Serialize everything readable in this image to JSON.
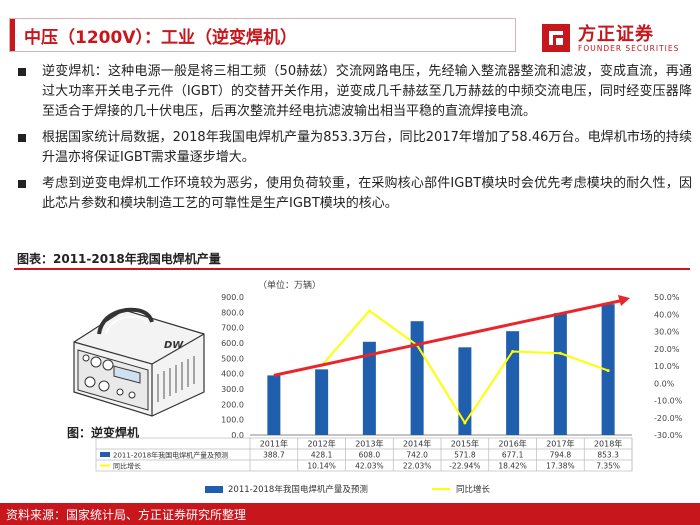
{
  "header": {
    "title": "中压（1200V）：工业（逆变焊机）"
  },
  "brand": {
    "name_cn": "方正证券",
    "name_en": "FOUNDER SECURITIES",
    "color": "#c8161d"
  },
  "bullets": [
    "逆变焊机：这种电源一般是将三相工频（50赫兹）交流网路电压，先经输入整流器整流和滤波，变成直流，再通过大功率开关电子元件（IGBT）的交替开关作用，逆变成几千赫兹至几万赫兹的中频交流电压，同时经变压器降至适合于焊接的几十伏电压，后再次整流并经电抗滤波输出相当平稳的直流焊接电流。",
    "根据国家统计局数据，2018年我国电焊机产量为853.3万台，同比2017年增加了58.46万台。电焊机市场的持续升温亦将保证IGBT需求量逐步增大。",
    "考虑到逆变电焊机工作环境较为恶劣，使用负荷较重，在采购核心部件IGBT模块时会优先考虑模块的耐久性，因此芯片参数和模块制造工艺的可靠性是生产IGBT模块的核心。"
  ],
  "figure": {
    "title": "图表：2011-2018年我国电焊机产量",
    "image_caption": "图：逆变焊机",
    "welder_label": "DW"
  },
  "chart_data": {
    "type": "bar",
    "unit_note": "（单位：万辆）",
    "categories": [
      "2011年",
      "2012年",
      "2013年",
      "2014年",
      "2015年",
      "2016年",
      "2017年",
      "2018年"
    ],
    "series": [
      {
        "name": "2011-2018年我国电焊机产量及预测",
        "type": "bar",
        "values": [
          388.7,
          428.1,
          608.0,
          742.0,
          571.8,
          677.1,
          794.8,
          853.3
        ],
        "labels": [
          "388.7",
          "428.1",
          "608.0",
          "742.0",
          "571.8",
          "677.1",
          "794.8",
          "853.3"
        ],
        "color": "#1f5fad"
      },
      {
        "name": "同比增长",
        "type": "line",
        "values": [
          null,
          10.14,
          42.03,
          22.03,
          -22.94,
          18.42,
          17.38,
          7.35
        ],
        "labels": [
          "",
          "10.14%",
          "42.03%",
          "22.03%",
          "-22.94%",
          "18.42%",
          "17.38%",
          "7.35%"
        ],
        "color": "#ffff00"
      }
    ],
    "y_left": {
      "ylim": [
        0,
        900
      ],
      "ticks": [
        "0.0",
        "100.0",
        "200.0",
        "300.0",
        "400.0",
        "500.0",
        "600.0",
        "700.0",
        "800.0",
        "900.0"
      ]
    },
    "y_right": {
      "ylim": [
        -30,
        50
      ],
      "ticks": [
        "-30.0%",
        "-20.0%",
        "-10.0%",
        "0.0%",
        "10.0%",
        "20.0%",
        "30.0%",
        "40.0%",
        "50.0%"
      ]
    },
    "trend_arrow_color": "#e8262b",
    "legend_position": "bottom",
    "grid": false
  },
  "footer": {
    "source": "资料来源：国家统计局、方正证券研究所整理"
  }
}
